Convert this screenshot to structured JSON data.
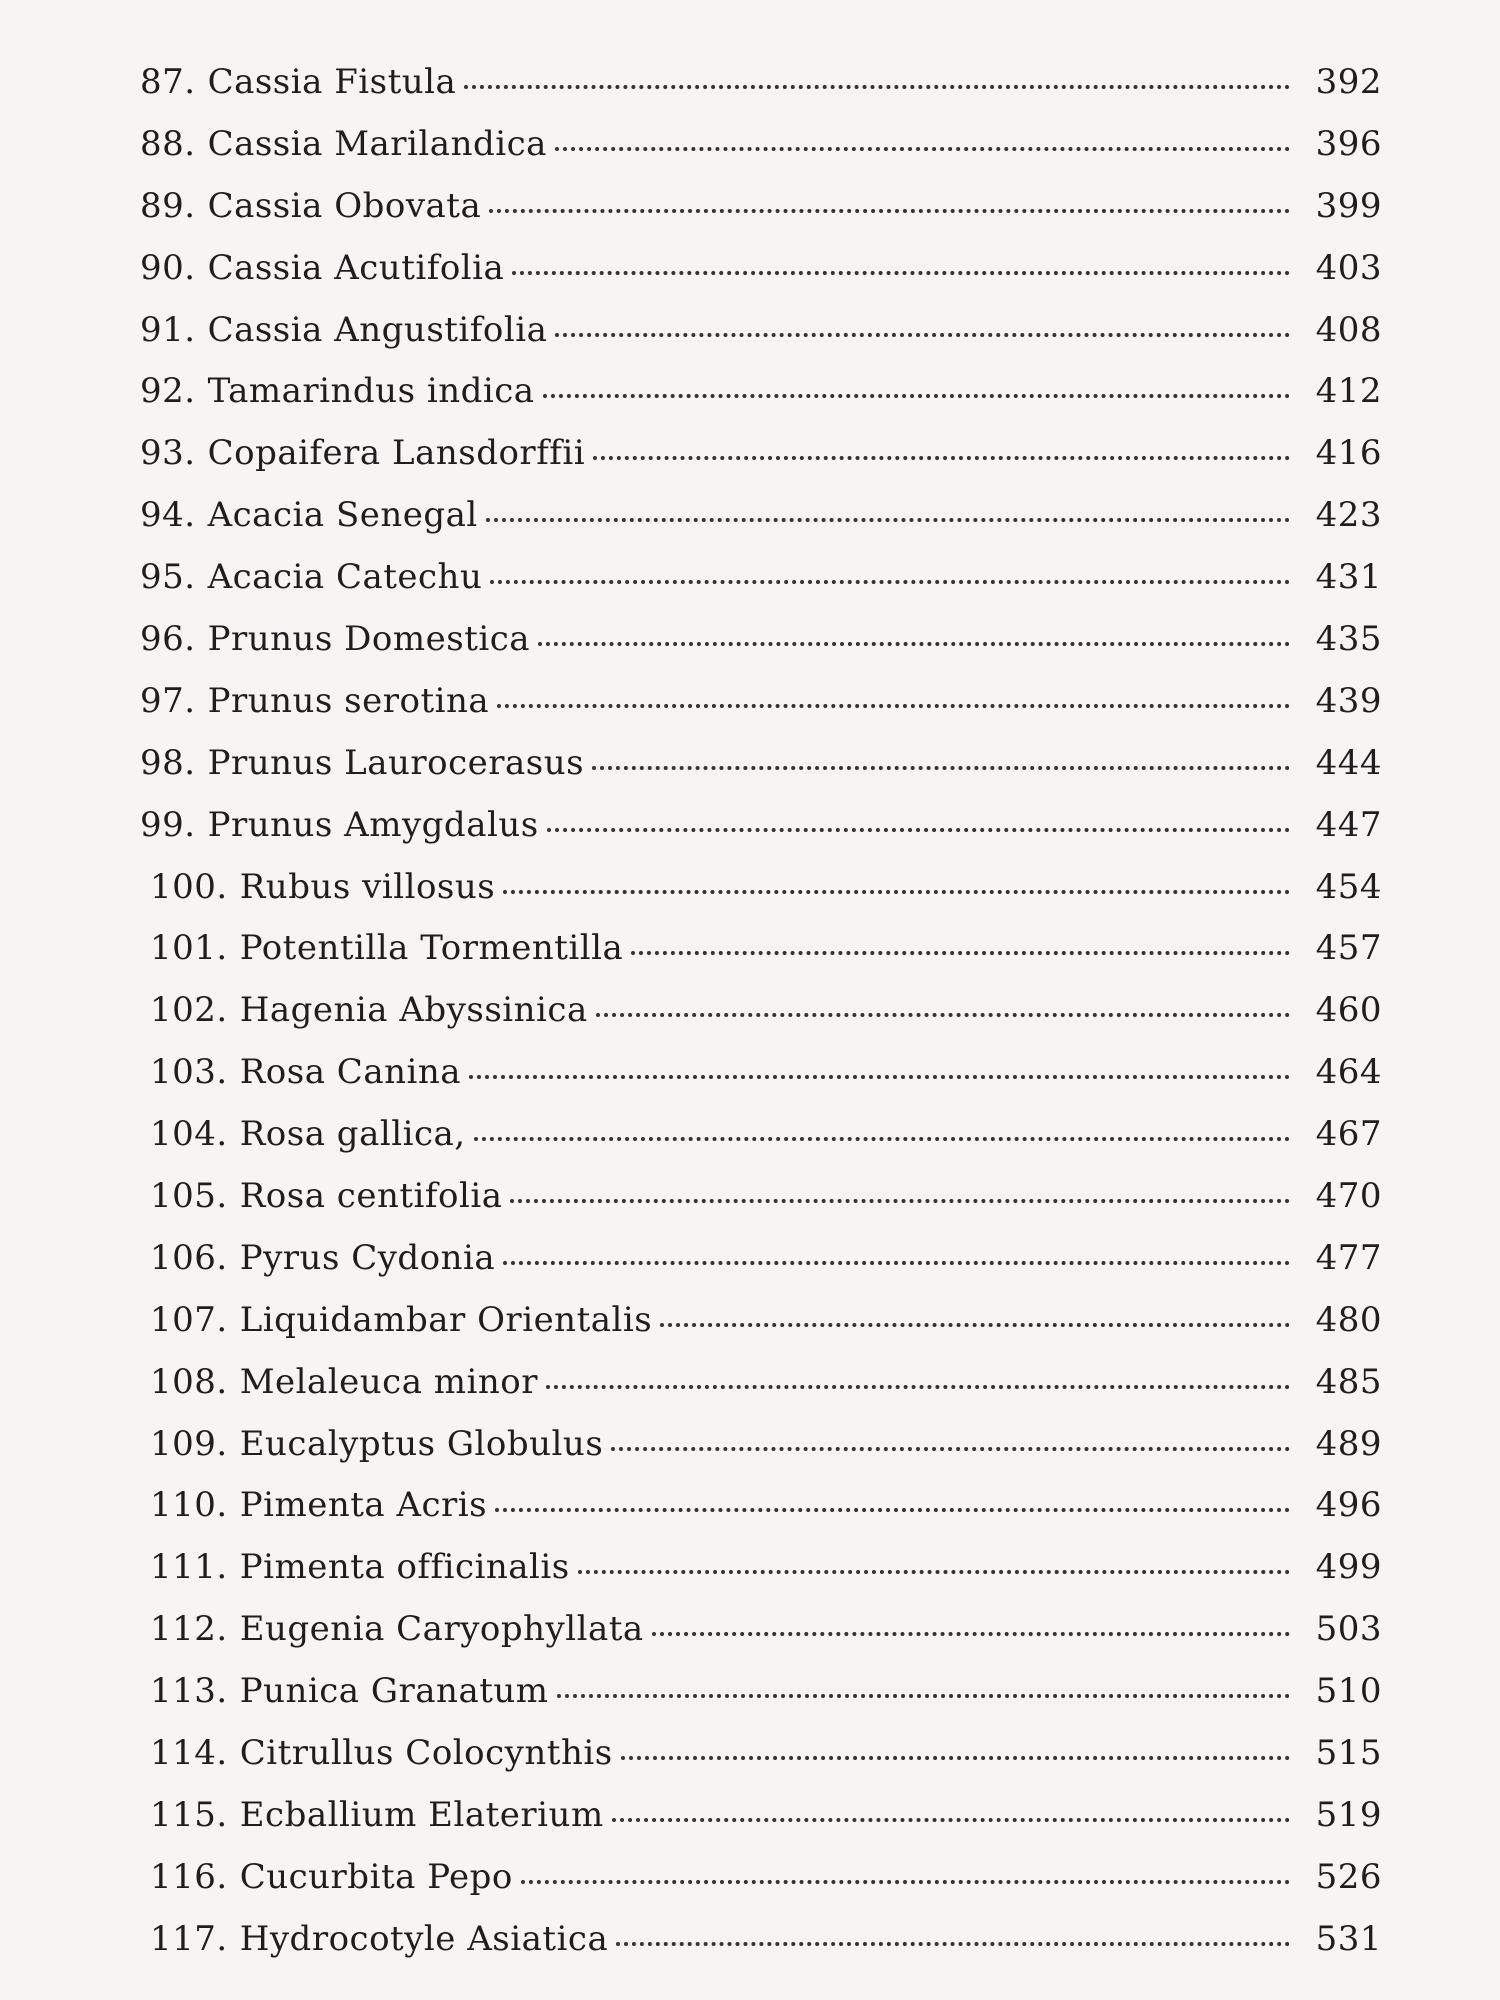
{
  "entries": [
    {
      "number": "87.",
      "title": "Cassia Fistula",
      "page": "392"
    },
    {
      "number": "88.",
      "title": "Cassia Marilandica",
      "page": "396"
    },
    {
      "number": "89.",
      "title": "Cassia Obovata",
      "page": "399"
    },
    {
      "number": "90.",
      "title": "Cassia Acutifolia",
      "page": "403"
    },
    {
      "number": "91.",
      "title": "Cassia Angustifolia",
      "page": "408"
    },
    {
      "number": "92.",
      "title": "Tamarindus indica",
      "page": "412"
    },
    {
      "number": "93.",
      "title": "Copaifera Lansdorffii",
      "page": "416"
    },
    {
      "number": "94.",
      "title": "Acacia Senegal",
      "page": "423"
    },
    {
      "number": "95.",
      "title": "Acacia Catechu",
      "page": "431"
    },
    {
      "number": "96.",
      "title": "Prunus Domestica",
      "page": "435"
    },
    {
      "number": "97.",
      "title": "Prunus serotina",
      "page": "439"
    },
    {
      "number": "98.",
      "title": "Prunus Laurocerasus",
      "page": "444"
    },
    {
      "number": "99.",
      "title": "Prunus Amygdalus",
      "page": "447"
    },
    {
      "number": "100.",
      "title": "Rubus villosus",
      "page": "454"
    },
    {
      "number": "101.",
      "title": "Potentilla Tormentilla",
      "page": "457"
    },
    {
      "number": "102.",
      "title": "Hagenia Abyssinica",
      "page": "460"
    },
    {
      "number": "103.",
      "title": "Rosa Canina",
      "page": "464"
    },
    {
      "number": "104.",
      "title": "Rosa gallica,",
      "page": "467"
    },
    {
      "number": "105.",
      "title": "Rosa centifolia",
      "page": "470"
    },
    {
      "number": "106.",
      "title": "Pyrus Cydonia",
      "page": "477"
    },
    {
      "number": "107.",
      "title": "Liquidambar Orientalis",
      "page": "480"
    },
    {
      "number": "108.",
      "title": "Melaleuca minor",
      "page": "485"
    },
    {
      "number": "109.",
      "title": "Eucalyptus Globulus",
      "page": "489"
    },
    {
      "number": "110.",
      "title": "Pimenta Acris",
      "page": "496"
    },
    {
      "number": "111.",
      "title": "Pimenta officinalis",
      "page": "499"
    },
    {
      "number": "112.",
      "title": "Eugenia Caryophyllata",
      "page": "503"
    },
    {
      "number": "113.",
      "title": "Punica Granatum",
      "page": "510"
    },
    {
      "number": "114.",
      "title": "Citrullus Colocynthis",
      "page": "515"
    },
    {
      "number": "115.",
      "title": "Ecballium Elaterium",
      "page": "519"
    },
    {
      "number": "116.",
      "title": "Cucurbita Pepo",
      "page": "526"
    },
    {
      "number": "117.",
      "title": "Hydrocotyle Asiatica",
      "page": "531"
    }
  ]
}
